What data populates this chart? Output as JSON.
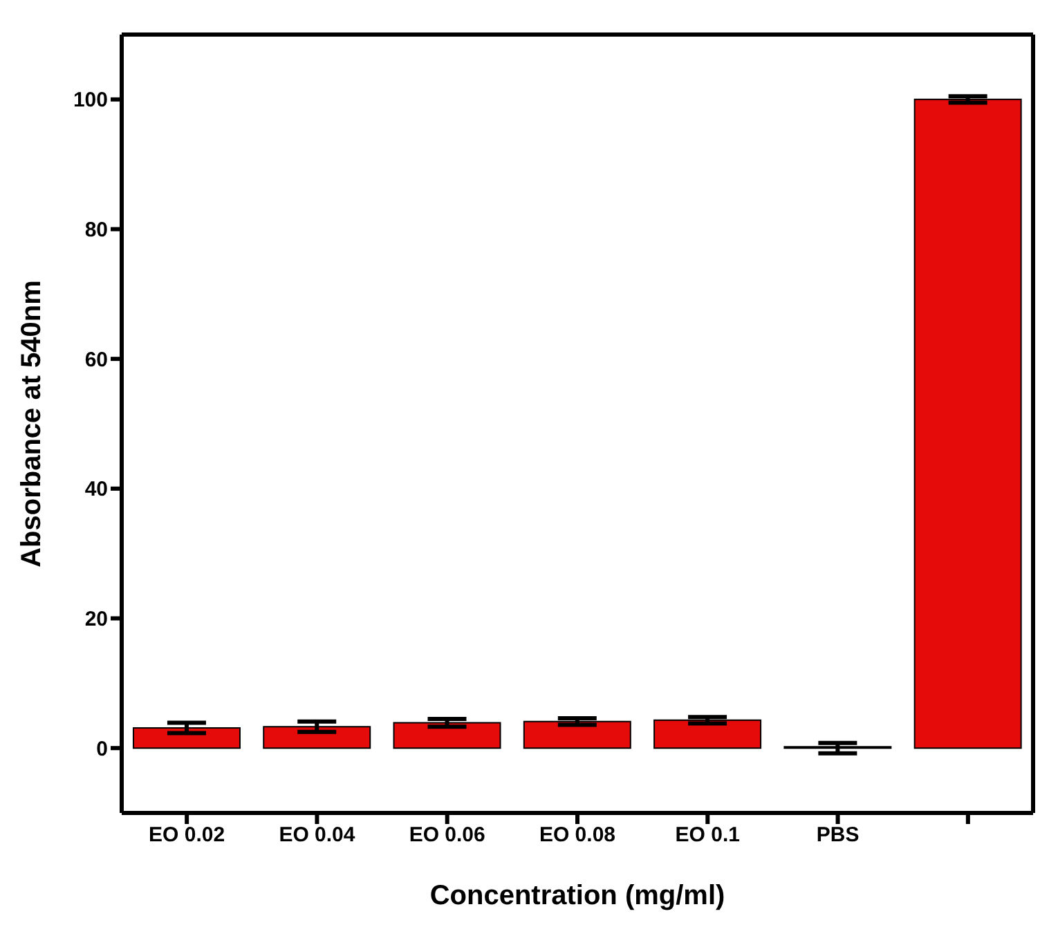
{
  "chart_data": {
    "type": "bar",
    "xlabel": "Concentration (mg/ml)",
    "ylabel": "Absorbance at 540nm",
    "categories": [
      "EO 0.02",
      "EO 0.04",
      "EO 0.06",
      "EO 0.08",
      "EO 0.1",
      "PBS",
      null
    ],
    "values": [
      3.1,
      3.3,
      3.9,
      4.1,
      4.3,
      0,
      100
    ],
    "errors": [
      0.8,
      0.8,
      0.6,
      0.5,
      0.5,
      0.8,
      0.5
    ],
    "color": "#e60b0b",
    "ylim": [
      -10,
      110
    ],
    "yticks": [
      0,
      20,
      40,
      60,
      80,
      100
    ],
    "grid": false
  }
}
